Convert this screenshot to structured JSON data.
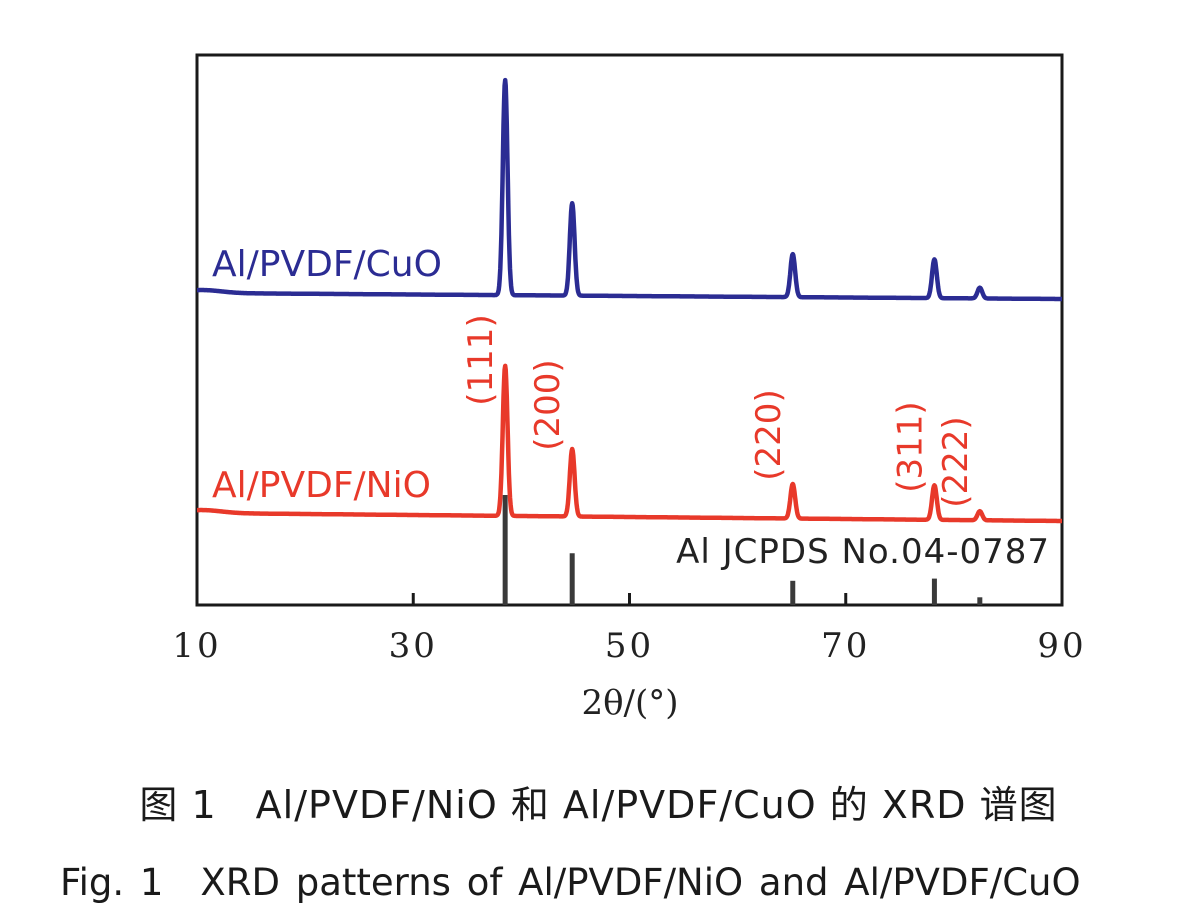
{
  "chart_data": {
    "type": "line",
    "xlabel": "2θ/(°)",
    "xlim": [
      10,
      90
    ],
    "x_ticks": [
      "10",
      "30",
      "50",
      "70",
      "90"
    ],
    "y_ticks_shown": false,
    "grid": false,
    "colors": {
      "cuo": "#2b2c93",
      "nio": "#e8392a",
      "reference": "#3a3a3a"
    },
    "series": [
      {
        "name": "Al/PVDF/CuO",
        "peaks": [
          {
            "two_theta": 38.5,
            "rel_intensity": 1.0
          },
          {
            "two_theta": 44.7,
            "rel_intensity": 0.43
          },
          {
            "two_theta": 65.1,
            "rel_intensity": 0.2
          },
          {
            "two_theta": 78.2,
            "rel_intensity": 0.18
          },
          {
            "two_theta": 82.4,
            "rel_intensity": 0.05
          }
        ]
      },
      {
        "name": "Al/PVDF/NiO",
        "peaks": [
          {
            "two_theta": 38.5,
            "rel_intensity": 1.0,
            "hkl": "(111)"
          },
          {
            "two_theta": 44.7,
            "rel_intensity": 0.45,
            "hkl": "(200)"
          },
          {
            "two_theta": 65.1,
            "rel_intensity": 0.23,
            "hkl": "(220)"
          },
          {
            "two_theta": 78.2,
            "rel_intensity": 0.23,
            "hkl": "(311)"
          },
          {
            "two_theta": 82.4,
            "rel_intensity": 0.06,
            "hkl": "(222)"
          }
        ]
      }
    ],
    "reference": {
      "label": "Al JCPDS No.04-0787",
      "lines": [
        {
          "two_theta": 38.5,
          "rel_intensity": 1.0
        },
        {
          "two_theta": 44.7,
          "rel_intensity": 0.47
        },
        {
          "two_theta": 65.1,
          "rel_intensity": 0.22
        },
        {
          "two_theta": 78.2,
          "rel_intensity": 0.24
        },
        {
          "two_theta": 82.4,
          "rel_intensity": 0.07
        }
      ]
    }
  },
  "captions": {
    "cn": "图 1　Al/PVDF/NiO 和 Al/PVDF/CuO 的 XRD 谱图",
    "en": "Fig. 1　XRD patterns of Al/PVDF/NiO and Al/PVDF/CuO"
  }
}
